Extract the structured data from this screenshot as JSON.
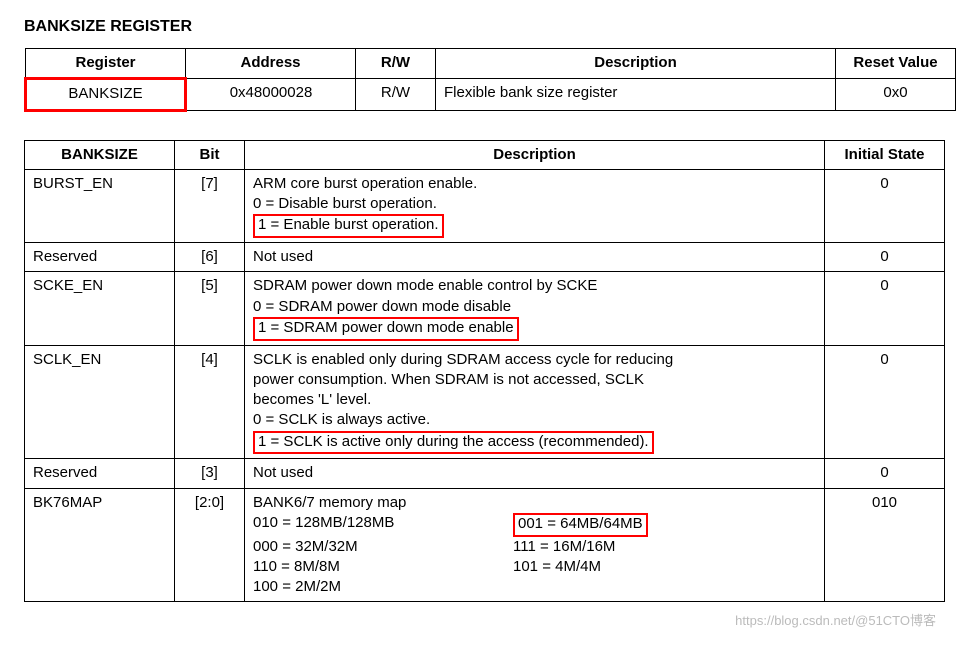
{
  "title": "BANKSIZE REGISTER",
  "table1": {
    "headers": [
      "Register",
      "Address",
      "R/W",
      "Description",
      "Reset Value"
    ],
    "row": {
      "register": "BANKSIZE",
      "address": "0x48000028",
      "rw": "R/W",
      "description": "Flexible bank size register",
      "reset": "0x0"
    },
    "col_widths": [
      "160px",
      "170px",
      "80px",
      "400px",
      "120px"
    ]
  },
  "table2": {
    "headers": [
      "BANKSIZE",
      "Bit",
      "Description",
      "Initial State"
    ],
    "col_widths": [
      "150px",
      "70px",
      "580px",
      "120px"
    ],
    "rows": {
      "burst_en": {
        "name": "BURST_EN",
        "bit": "[7]",
        "line1": "ARM core burst operation enable.",
        "line2": "0 = Disable burst operation.",
        "line3_hl": "1 = Enable burst operation.",
        "init": "0"
      },
      "reserved6": {
        "name": "Reserved",
        "bit": "[6]",
        "desc": "Not used",
        "init": "0"
      },
      "scke_en": {
        "name": "SCKE_EN",
        "bit": "[5]",
        "line1": "SDRAM power down mode enable control by SCKE",
        "line2": "0 = SDRAM power down mode disable",
        "line3_hl": "1 = SDRAM power down mode enable",
        "init": "0"
      },
      "sclk_en": {
        "name": "SCLK_EN",
        "bit": "[4]",
        "line1": "SCLK is enabled only during SDRAM access cycle for reducing",
        "line2": "power consumption. When SDRAM is not accessed, SCLK",
        "line3": "becomes 'L' level.",
        "line4": "0 = SCLK is always active.",
        "line5_hl": "1 = SCLK is active only during the access (recommended).",
        "init": "0"
      },
      "reserved3": {
        "name": "Reserved",
        "bit": "[3]",
        "desc": "Not used",
        "init": "0"
      },
      "bk76map": {
        "name": "BK76MAP",
        "bit": "[2:0]",
        "line1": "BANK6/7 memory map",
        "l_010": "010 = 128MB/128MB",
        "r_001_hl": "001 = 64MB/64MB",
        "l_000": "000 = 32M/32M",
        "r_111": "111 = 16M/16M",
        "l_110": "110 = 8M/8M",
        "r_101": "101 = 4M/4M",
        "l_100": "100 = 2M/2M",
        "init": "010"
      }
    }
  },
  "watermark": "https://blog.csdn.net/@51CTO博客",
  "colors": {
    "highlight": "#ff0000",
    "text": "#000000",
    "background": "#ffffff",
    "watermark": "#bbbbbb"
  }
}
